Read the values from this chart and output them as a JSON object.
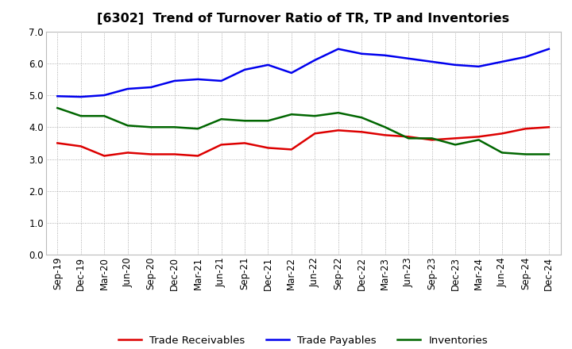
{
  "title": "[6302]  Trend of Turnover Ratio of TR, TP and Inventories",
  "x_labels": [
    "Sep-19",
    "Dec-19",
    "Mar-20",
    "Jun-20",
    "Sep-20",
    "Dec-20",
    "Mar-21",
    "Jun-21",
    "Sep-21",
    "Dec-21",
    "Mar-22",
    "Jun-22",
    "Sep-22",
    "Dec-22",
    "Mar-23",
    "Jun-23",
    "Sep-23",
    "Dec-23",
    "Mar-24",
    "Jun-24",
    "Sep-24",
    "Dec-24"
  ],
  "trade_receivables": [
    3.5,
    3.4,
    3.1,
    3.2,
    3.15,
    3.15,
    3.1,
    3.45,
    3.5,
    3.35,
    3.3,
    3.8,
    3.9,
    3.85,
    3.75,
    3.7,
    3.6,
    3.65,
    3.7,
    3.8,
    3.95,
    4.0
  ],
  "trade_payables": [
    4.97,
    4.95,
    5.0,
    5.2,
    5.25,
    5.45,
    5.5,
    5.45,
    5.8,
    5.95,
    5.7,
    6.1,
    6.45,
    6.3,
    6.25,
    6.15,
    6.05,
    5.95,
    5.9,
    6.05,
    6.2,
    6.45
  ],
  "inventories": [
    4.6,
    4.35,
    4.35,
    4.05,
    4.0,
    4.0,
    3.95,
    4.25,
    4.2,
    4.2,
    4.4,
    4.35,
    4.45,
    4.3,
    4.0,
    3.65,
    3.65,
    3.45,
    3.6,
    3.2,
    3.15,
    3.15
  ],
  "ylim": [
    0.0,
    7.0
  ],
  "yticks": [
    0.0,
    1.0,
    2.0,
    3.0,
    4.0,
    5.0,
    6.0,
    7.0
  ],
  "line_colors": {
    "trade_receivables": "#dd0000",
    "trade_payables": "#0000ee",
    "inventories": "#006600"
  },
  "legend_labels": [
    "Trade Receivables",
    "Trade Payables",
    "Inventories"
  ],
  "background_color": "#ffffff",
  "plot_bg_color": "#ffffff",
  "grid_color": "#999999",
  "title_fontsize": 11.5,
  "axis_fontsize": 8.5,
  "legend_fontsize": 9.5,
  "linewidth": 1.8
}
